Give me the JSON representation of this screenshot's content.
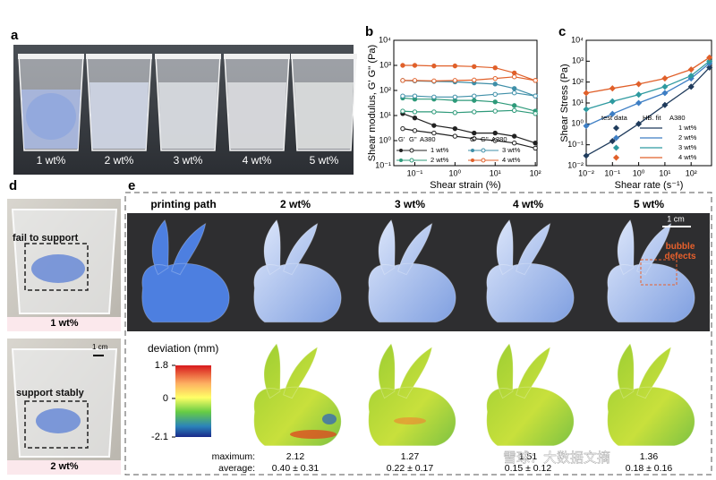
{
  "panel_labels": [
    "a",
    "b",
    "c",
    "d",
    "e"
  ],
  "panel_a": {
    "labels": [
      "1 wt%",
      "2 wt%",
      "3 wt%",
      "4 wt%",
      "5 wt%"
    ]
  },
  "panel_b": {
    "type": "line",
    "xlabel": "Shear strain (%)",
    "ylabel": "Shear modulus, G' G'' (Pa)",
    "xlog": true,
    "ylog": true,
    "xlim": [
      0.03,
      110
    ],
    "ylim": [
      0.1,
      10000
    ],
    "xticks": [
      {
        "value": 0.1,
        "label": "10⁻¹"
      },
      {
        "value": 1,
        "label": "10⁰"
      },
      {
        "value": 10,
        "label": "10¹"
      },
      {
        "value": 100,
        "label": "10²"
      }
    ],
    "yticks": [
      {
        "value": 0.1,
        "label": "10⁻¹"
      },
      {
        "value": 1,
        "label": "10⁰"
      },
      {
        "value": 10,
        "label": "10¹"
      },
      {
        "value": 100,
        "label": "10²"
      },
      {
        "value": 1000,
        "label": "10³"
      },
      {
        "value": 10000,
        "label": "10⁴"
      }
    ],
    "legend_headers": [
      "G'",
      "G''",
      "A380",
      "G'",
      "G''",
      "A380"
    ],
    "x": [
      0.05,
      0.1,
      0.3,
      1,
      3,
      10,
      30,
      100
    ],
    "series": [
      {
        "name": "1 wt%",
        "color": "#222222",
        "storage": [
          12,
          8,
          4,
          3,
          2,
          2,
          1.5,
          0.8
        ],
        "loss": [
          3,
          2.5,
          2,
          1.5,
          1.2,
          1,
          0.8,
          0.5
        ]
      },
      {
        "name": "2 wt%",
        "color": "#2e9a7a",
        "storage": [
          50,
          45,
          45,
          40,
          40,
          35,
          25,
          15
        ],
        "loss": [
          15,
          14,
          14,
          13,
          14,
          15,
          16,
          12
        ]
      },
      {
        "name": "3 wt%",
        "color": "#3f8fa8",
        "storage": [
          250,
          240,
          230,
          220,
          200,
          180,
          120,
          60
        ],
        "loss": [
          60,
          60,
          55,
          55,
          60,
          70,
          80,
          60
        ]
      },
      {
        "name": "4 wt%",
        "color": "#e0602a",
        "storage": [
          1000,
          1000,
          950,
          950,
          900,
          800,
          500,
          250
        ],
        "loss": [
          250,
          250,
          240,
          250,
          260,
          300,
          350,
          250
        ]
      }
    ]
  },
  "panel_c": {
    "type": "scatter",
    "xlabel": "Shear rate (s⁻¹)",
    "ylabel": "Shear Stress (Pa)",
    "xlog": true,
    "ylog": true,
    "xlim": [
      0.01,
      600
    ],
    "ylim": [
      0.01,
      10000
    ],
    "xticks": [
      {
        "value": 0.01,
        "label": "10⁻²"
      },
      {
        "value": 0.1,
        "label": "10⁻¹"
      },
      {
        "value": 1,
        "label": "10⁰"
      },
      {
        "value": 10,
        "label": "10¹"
      },
      {
        "value": 100,
        "label": "10²"
      }
    ],
    "yticks": [
      {
        "value": 0.01,
        "label": "10⁻²"
      },
      {
        "value": 0.1,
        "label": "10⁻¹"
      },
      {
        "value": 1,
        "label": "10⁰"
      },
      {
        "value": 10,
        "label": "10¹"
      },
      {
        "value": 100,
        "label": "10²"
      },
      {
        "value": 1000,
        "label": "10³"
      },
      {
        "value": 10000,
        "label": "10⁴"
      }
    ],
    "legend_headers": [
      "test data",
      "HB. fit",
      "A380"
    ],
    "x": [
      0.01,
      0.1,
      1,
      10,
      100,
      500
    ],
    "series": [
      {
        "name": "1 wt%",
        "color": "#1f3b5c",
        "values": [
          0.03,
          0.15,
          1,
          8,
          60,
          500
        ]
      },
      {
        "name": "2 wt%",
        "color": "#3d7ec4",
        "values": [
          0.8,
          3,
          10,
          30,
          150,
          800
        ]
      },
      {
        "name": "3 wt%",
        "color": "#2e9aa0",
        "values": [
          5,
          12,
          25,
          60,
          200,
          1000
        ]
      },
      {
        "name": "4 wt%",
        "color": "#e0602a",
        "values": [
          30,
          50,
          80,
          150,
          400,
          1500
        ]
      }
    ]
  },
  "panel_d": {
    "top_caption": "fail to support",
    "top_label": "1 wt%",
    "scale_bar": "1 cm",
    "bottom_caption": "support stably",
    "bottom_label": "2 wt%"
  },
  "panel_e": {
    "headers": [
      "printing path",
      "2 wt%",
      "3 wt%",
      "4 wt%",
      "5 wt%"
    ],
    "scale_bar": "1 cm",
    "annotation": "bubble defects",
    "colorbar_title": "deviation (mm)",
    "colorbar_ticks": [
      1.8,
      0,
      -2.1
    ],
    "maximum_label": "maximum:",
    "average_label": "average:",
    "maximum": [
      2.12,
      1.27,
      1.51,
      1.36
    ],
    "average": [
      "0.40 ± 0.31",
      "0.22 ± 0.17",
      "0.15 ± 0.12",
      "0.18 ± 0.16"
    ]
  },
  "watermark": "雪球：大数据文摘"
}
